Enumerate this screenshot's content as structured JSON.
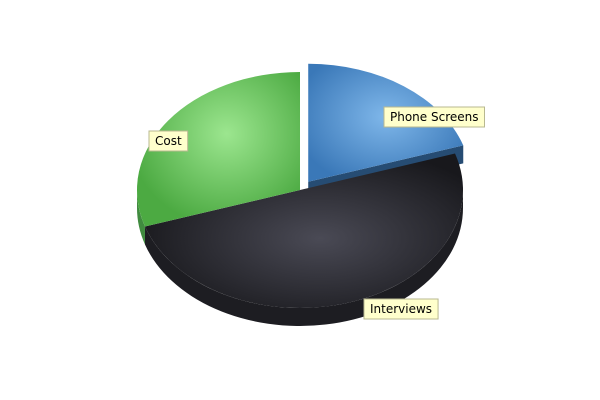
{
  "chart_data": {
    "type": "pie",
    "title": "",
    "categories": [
      "Phone Screens",
      "Interviews",
      "Cost"
    ],
    "values": [
      20,
      50,
      30
    ],
    "exploded": [
      "Phone Screens"
    ],
    "colors": {
      "Phone Screens": "#3f7fc0",
      "Interviews": "#2a2a30",
      "Cost": "#5cc65a"
    },
    "label_box_color": "#ffffcc",
    "legend": "none",
    "style": "3d"
  }
}
